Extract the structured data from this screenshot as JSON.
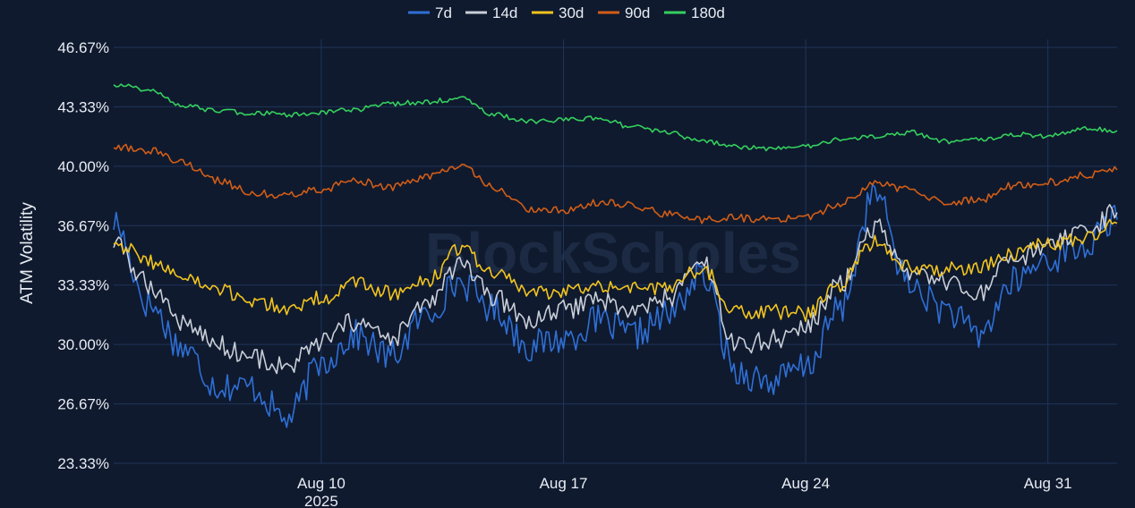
{
  "chart_data": {
    "type": "line",
    "title": "",
    "xlabel": "",
    "ylabel": "ATM Volatility",
    "watermark": "BlockScholes",
    "x_range": [
      "2025-08-04",
      "2025-09-02"
    ],
    "ylim": [
      23.33,
      46.67
    ],
    "y_ticks": [
      "23.33%",
      "26.67%",
      "30.00%",
      "33.33%",
      "36.67%",
      "40.00%",
      "43.33%",
      "46.67%"
    ],
    "x_ticks": [
      {
        "label": "Aug 10",
        "sublabel": "2025",
        "date": "2025-08-10"
      },
      {
        "label": "Aug 17",
        "sublabel": "",
        "date": "2025-08-17"
      },
      {
        "label": "Aug 24",
        "sublabel": "",
        "date": "2025-08-24"
      },
      {
        "label": "Aug 31",
        "sublabel": "",
        "date": "2025-08-31"
      }
    ],
    "grid": true,
    "legend_position": "top-center",
    "series": [
      {
        "name": "7d",
        "color": "#2f6fd6",
        "points": [
          [
            "2025-08-04",
            36.9
          ],
          [
            "2025-08-05",
            32.3
          ],
          [
            "2025-08-06",
            29.8
          ],
          [
            "2025-08-07",
            27.7
          ],
          [
            "2025-08-08",
            27.6
          ],
          [
            "2025-08-09",
            25.8
          ],
          [
            "2025-08-10",
            29.0
          ],
          [
            "2025-08-11",
            30.5
          ],
          [
            "2025-08-12",
            29.3
          ],
          [
            "2025-08-13",
            31.6
          ],
          [
            "2025-08-14",
            33.5
          ],
          [
            "2025-08-15",
            32.0
          ],
          [
            "2025-08-16",
            29.9
          ],
          [
            "2025-08-17",
            30.3
          ],
          [
            "2025-08-18",
            31.3
          ],
          [
            "2025-08-19",
            30.5
          ],
          [
            "2025-08-20",
            31.6
          ],
          [
            "2025-08-21",
            33.9
          ],
          [
            "2025-08-22",
            28.5
          ],
          [
            "2025-08-23",
            27.9
          ],
          [
            "2025-08-24",
            28.7
          ],
          [
            "2025-08-25",
            32.0
          ],
          [
            "2025-08-26",
            38.5
          ],
          [
            "2025-08-27",
            33.3
          ],
          [
            "2025-08-28",
            32.0
          ],
          [
            "2025-08-29",
            30.5
          ],
          [
            "2025-08-30",
            33.5
          ],
          [
            "2025-08-31",
            34.8
          ],
          [
            "2025-09-01",
            35.4
          ],
          [
            "2025-09-02",
            37.0
          ]
        ]
      },
      {
        "name": "14d",
        "color": "#c9ced8",
        "points": [
          [
            "2025-08-04",
            35.7
          ],
          [
            "2025-08-05",
            33.4
          ],
          [
            "2025-08-06",
            31.3
          ],
          [
            "2025-08-07",
            30.0
          ],
          [
            "2025-08-08",
            29.3
          ],
          [
            "2025-08-09",
            28.7
          ],
          [
            "2025-08-10",
            30.1
          ],
          [
            "2025-08-11",
            31.3
          ],
          [
            "2025-08-12",
            30.2
          ],
          [
            "2025-08-13",
            32.2
          ],
          [
            "2025-08-14",
            34.4
          ],
          [
            "2025-08-15",
            32.6
          ],
          [
            "2025-08-16",
            31.3
          ],
          [
            "2025-08-17",
            31.9
          ],
          [
            "2025-08-18",
            32.6
          ],
          [
            "2025-08-19",
            31.8
          ],
          [
            "2025-08-20",
            32.6
          ],
          [
            "2025-08-21",
            34.6
          ],
          [
            "2025-08-22",
            29.9
          ],
          [
            "2025-08-23",
            30.3
          ],
          [
            "2025-08-24",
            30.9
          ],
          [
            "2025-08-25",
            33.4
          ],
          [
            "2025-08-26",
            36.6
          ],
          [
            "2025-08-27",
            33.8
          ],
          [
            "2025-08-28",
            33.5
          ],
          [
            "2025-08-29",
            32.8
          ],
          [
            "2025-08-30",
            34.7
          ],
          [
            "2025-08-31",
            35.6
          ],
          [
            "2025-09-01",
            36.1
          ],
          [
            "2025-09-02",
            37.4
          ]
        ]
      },
      {
        "name": "30d",
        "color": "#f2c41f",
        "points": [
          [
            "2025-08-04",
            35.8
          ],
          [
            "2025-08-05",
            34.7
          ],
          [
            "2025-08-06",
            33.8
          ],
          [
            "2025-08-07",
            33.0
          ],
          [
            "2025-08-08",
            32.5
          ],
          [
            "2025-08-09",
            32.0
          ],
          [
            "2025-08-10",
            32.6
          ],
          [
            "2025-08-11",
            33.4
          ],
          [
            "2025-08-12",
            32.9
          ],
          [
            "2025-08-13",
            33.4
          ],
          [
            "2025-08-14",
            35.4
          ],
          [
            "2025-08-15",
            34.0
          ],
          [
            "2025-08-16",
            33.0
          ],
          [
            "2025-08-17",
            32.9
          ],
          [
            "2025-08-18",
            33.4
          ],
          [
            "2025-08-19",
            33.2
          ],
          [
            "2025-08-20",
            33.1
          ],
          [
            "2025-08-21",
            34.3
          ],
          [
            "2025-08-22",
            31.8
          ],
          [
            "2025-08-23",
            31.8
          ],
          [
            "2025-08-24",
            31.7
          ],
          [
            "2025-08-25",
            33.4
          ],
          [
            "2025-08-26",
            35.8
          ],
          [
            "2025-08-27",
            34.4
          ],
          [
            "2025-08-28",
            34.2
          ],
          [
            "2025-08-29",
            34.3
          ],
          [
            "2025-08-30",
            35.2
          ],
          [
            "2025-08-31",
            35.6
          ],
          [
            "2025-09-01",
            35.9
          ],
          [
            "2025-09-02",
            36.8
          ]
        ]
      },
      {
        "name": "90d",
        "color": "#d25d17",
        "points": [
          [
            "2025-08-04",
            41.1
          ],
          [
            "2025-08-05",
            40.9
          ],
          [
            "2025-08-06",
            40.2
          ],
          [
            "2025-08-07",
            39.2
          ],
          [
            "2025-08-08",
            38.5
          ],
          [
            "2025-08-09",
            38.4
          ],
          [
            "2025-08-10",
            38.7
          ],
          [
            "2025-08-11",
            39.2
          ],
          [
            "2025-08-12",
            38.8
          ],
          [
            "2025-08-13",
            39.4
          ],
          [
            "2025-08-14",
            40.0
          ],
          [
            "2025-08-15",
            38.8
          ],
          [
            "2025-08-16",
            37.6
          ],
          [
            "2025-08-17",
            37.5
          ],
          [
            "2025-08-18",
            38.0
          ],
          [
            "2025-08-19",
            37.8
          ],
          [
            "2025-08-20",
            37.3
          ],
          [
            "2025-08-21",
            37.0
          ],
          [
            "2025-08-22",
            37.1
          ],
          [
            "2025-08-23",
            37.0
          ],
          [
            "2025-08-24",
            37.1
          ],
          [
            "2025-08-25",
            37.9
          ],
          [
            "2025-08-26",
            39.0
          ],
          [
            "2025-08-27",
            38.7
          ],
          [
            "2025-08-28",
            38.0
          ],
          [
            "2025-08-29",
            38.1
          ],
          [
            "2025-08-30",
            38.9
          ],
          [
            "2025-08-31",
            39.1
          ],
          [
            "2025-09-01",
            39.5
          ],
          [
            "2025-09-02",
            39.8
          ]
        ]
      },
      {
        "name": "180d",
        "color": "#35d05e",
        "points": [
          [
            "2025-08-04",
            44.6
          ],
          [
            "2025-08-05",
            44.3
          ],
          [
            "2025-08-06",
            43.4
          ],
          [
            "2025-08-07",
            43.1
          ],
          [
            "2025-08-08",
            43.0
          ],
          [
            "2025-08-09",
            42.9
          ],
          [
            "2025-08-10",
            43.0
          ],
          [
            "2025-08-11",
            43.2
          ],
          [
            "2025-08-12",
            43.5
          ],
          [
            "2025-08-13",
            43.6
          ],
          [
            "2025-08-14",
            43.8
          ],
          [
            "2025-08-15",
            42.9
          ],
          [
            "2025-08-16",
            42.5
          ],
          [
            "2025-08-17",
            42.6
          ],
          [
            "2025-08-18",
            42.7
          ],
          [
            "2025-08-19",
            42.2
          ],
          [
            "2025-08-20",
            41.9
          ],
          [
            "2025-08-21",
            41.4
          ],
          [
            "2025-08-22",
            41.1
          ],
          [
            "2025-08-23",
            41.0
          ],
          [
            "2025-08-24",
            41.1
          ],
          [
            "2025-08-25",
            41.5
          ],
          [
            "2025-08-26",
            41.7
          ],
          [
            "2025-08-27",
            41.9
          ],
          [
            "2025-08-28",
            41.4
          ],
          [
            "2025-08-29",
            41.5
          ],
          [
            "2025-08-30",
            41.8
          ],
          [
            "2025-08-31",
            41.7
          ],
          [
            "2025-09-01",
            42.1
          ],
          [
            "2025-09-02",
            42.0
          ]
        ]
      }
    ]
  }
}
